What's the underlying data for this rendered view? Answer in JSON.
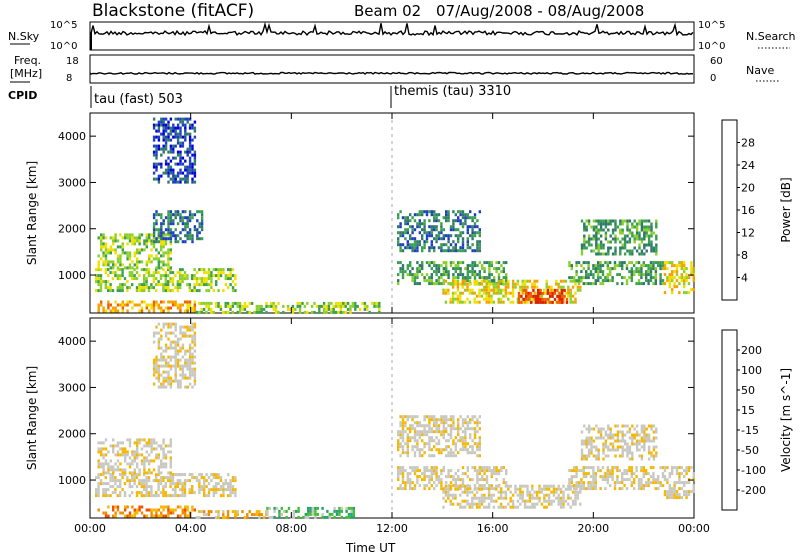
{
  "header": {
    "station": "Blackstone (fitACF)",
    "beam": "Beam 02",
    "daterange": "07/Aug/2008 - 08/Aug/2008"
  },
  "strips": {
    "nsky_label": "N.Sky",
    "nsearch_label": "N.Search",
    "nsky_ticks": [
      "10^5",
      "10^0"
    ],
    "nsearch_ticks": [
      "10^5",
      "10^0"
    ],
    "freq_label_1": "Freq.",
    "freq_label_2": "[MHz]",
    "freq_ticks": [
      "18",
      "8"
    ],
    "nave_label": "Nave",
    "nave_ticks": [
      "60",
      "0"
    ],
    "cpid_label": "CPID",
    "cpid_segments": [
      {
        "name": "tau (fast) 503",
        "start_hour": 0
      },
      {
        "name": "themis (tau) 3310",
        "start_hour": 12
      }
    ]
  },
  "colors": {
    "power_scale": [
      "#0000e0",
      "#1f3fc0",
      "#2f7a6a",
      "#3aa050",
      "#8ccf2a",
      "#f0e000",
      "#f7a000",
      "#f06000",
      "#e02000"
    ],
    "velocity_scale": [
      "#e02000",
      "#f05000",
      "#f58a00",
      "#f5b800",
      "#c8c8c0",
      "#c8c8c0",
      "#40c030",
      "#2aa070",
      "#3050c0",
      "#1830b0"
    ]
  },
  "chart_data": [
    {
      "type": "heatmap",
      "title": "Power",
      "ylabel": "Slant Range [km]",
      "xlabel": "",
      "ylim": [
        180,
        4500
      ],
      "xlim": [
        0,
        24
      ],
      "x_ticks": [
        0,
        4,
        8,
        12,
        16,
        20,
        24
      ],
      "y_ticks": [
        1000,
        2000,
        3000,
        4000
      ],
      "colorbar_label": "Power [dB]",
      "colorbar_ticks": [
        "4",
        "8",
        "12",
        "16",
        "20",
        "24",
        "28"
      ],
      "blobs": [
        {
          "t0": 0.3,
          "t1": 4.2,
          "r0": 200,
          "r1": 450,
          "level": 6
        },
        {
          "t0": 4.2,
          "t1": 11.5,
          "r0": 200,
          "r1": 420,
          "level": 4
        },
        {
          "t0": 0.2,
          "t1": 5.8,
          "r0": 650,
          "r1": 1150,
          "level": 4
        },
        {
          "t0": 0.3,
          "t1": 3.2,
          "r0": 1150,
          "r1": 1900,
          "level": 4
        },
        {
          "t0": 2.5,
          "t1": 4.5,
          "r0": 1700,
          "r1": 2400,
          "level": 2
        },
        {
          "t0": 2.5,
          "t1": 4.2,
          "r0": 3000,
          "r1": 4400,
          "level": 1
        },
        {
          "t0": 12.2,
          "t1": 16.5,
          "r0": 800,
          "r1": 1300,
          "level": 3
        },
        {
          "t0": 12.2,
          "t1": 15.5,
          "r0": 1500,
          "r1": 2400,
          "level": 2
        },
        {
          "t0": 14.0,
          "t1": 19.5,
          "r0": 400,
          "r1": 900,
          "level": 5
        },
        {
          "t0": 17.0,
          "t1": 19.0,
          "r0": 400,
          "r1": 700,
          "level": 8
        },
        {
          "t0": 19.0,
          "t1": 22.8,
          "r0": 800,
          "r1": 1300,
          "level": 3
        },
        {
          "t0": 19.5,
          "t1": 22.5,
          "r0": 1450,
          "r1": 2200,
          "level": 3
        },
        {
          "t0": 22.8,
          "t1": 24.0,
          "r0": 600,
          "r1": 1300,
          "level": 5
        }
      ]
    },
    {
      "type": "heatmap",
      "title": "Velocity",
      "ylabel": "Slant Range [km]",
      "xlabel": "Time UT",
      "ylim": [
        180,
        4500
      ],
      "xlim": [
        0,
        24
      ],
      "x_ticks": [
        0,
        4,
        8,
        12,
        16,
        20,
        24
      ],
      "x_tick_labels": [
        "00:00",
        "04:00",
        "08:00",
        "12:00",
        "16:00",
        "20:00",
        "00:00"
      ],
      "y_ticks": [
        1000,
        2000,
        3000,
        4000
      ],
      "colorbar_label": "Velocity [m s^-1]",
      "colorbar_ticks": [
        "-200",
        "-100",
        "-50",
        "-15",
        "15",
        "50",
        "100",
        "200"
      ],
      "blobs": [
        {
          "t0": 0.3,
          "t1": 4.2,
          "r0": 200,
          "r1": 450,
          "level": 2
        },
        {
          "t0": 4.2,
          "t1": 7.0,
          "r0": 200,
          "r1": 350,
          "level": 3
        },
        {
          "t0": 7.0,
          "t1": 10.5,
          "r0": 200,
          "r1": 420,
          "level": 6
        },
        {
          "t0": 0.2,
          "t1": 5.8,
          "r0": 650,
          "r1": 1150,
          "level": 4
        },
        {
          "t0": 0.3,
          "t1": 3.2,
          "r0": 1150,
          "r1": 1900,
          "level": 4
        },
        {
          "t0": 2.5,
          "t1": 4.2,
          "r0": 3000,
          "r1": 4400,
          "level": 4
        },
        {
          "t0": 12.2,
          "t1": 16.5,
          "r0": 800,
          "r1": 1300,
          "level": 4
        },
        {
          "t0": 12.2,
          "t1": 15.5,
          "r0": 1500,
          "r1": 2400,
          "level": 4
        },
        {
          "t0": 14.0,
          "t1": 19.5,
          "r0": 400,
          "r1": 900,
          "level": 4
        },
        {
          "t0": 19.0,
          "t1": 22.8,
          "r0": 800,
          "r1": 1300,
          "level": 4
        },
        {
          "t0": 19.5,
          "t1": 22.5,
          "r0": 1450,
          "r1": 2200,
          "level": 4
        },
        {
          "t0": 22.8,
          "t1": 24.0,
          "r0": 600,
          "r1": 1300,
          "level": 4
        }
      ]
    }
  ]
}
